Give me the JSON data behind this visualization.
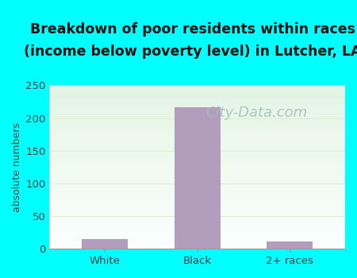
{
  "categories": [
    "White",
    "Black",
    "2+ races"
  ],
  "values": [
    14,
    217,
    11
  ],
  "bar_color": "#b39dbd",
  "title_line1": "Breakdown of poor residents within races",
  "title_line2": "(income below poverty level) in Lutcher, LA",
  "ylabel": "absolute numbers",
  "ylim": [
    0,
    250
  ],
  "yticks": [
    0,
    50,
    100,
    150,
    200,
    250
  ],
  "background_outer": "#00ffff",
  "plot_bg_top": "#f5fef5",
  "plot_bg_bottom": "#e0f5e0",
  "grid_color": "#ddeecc",
  "title_fontsize": 12.5,
  "ylabel_fontsize": 9,
  "tick_fontsize": 9.5,
  "watermark_text": "City-Data.com",
  "watermark_color": "#a0bfbf",
  "watermark_fontsize": 13,
  "title_color": "#111111"
}
